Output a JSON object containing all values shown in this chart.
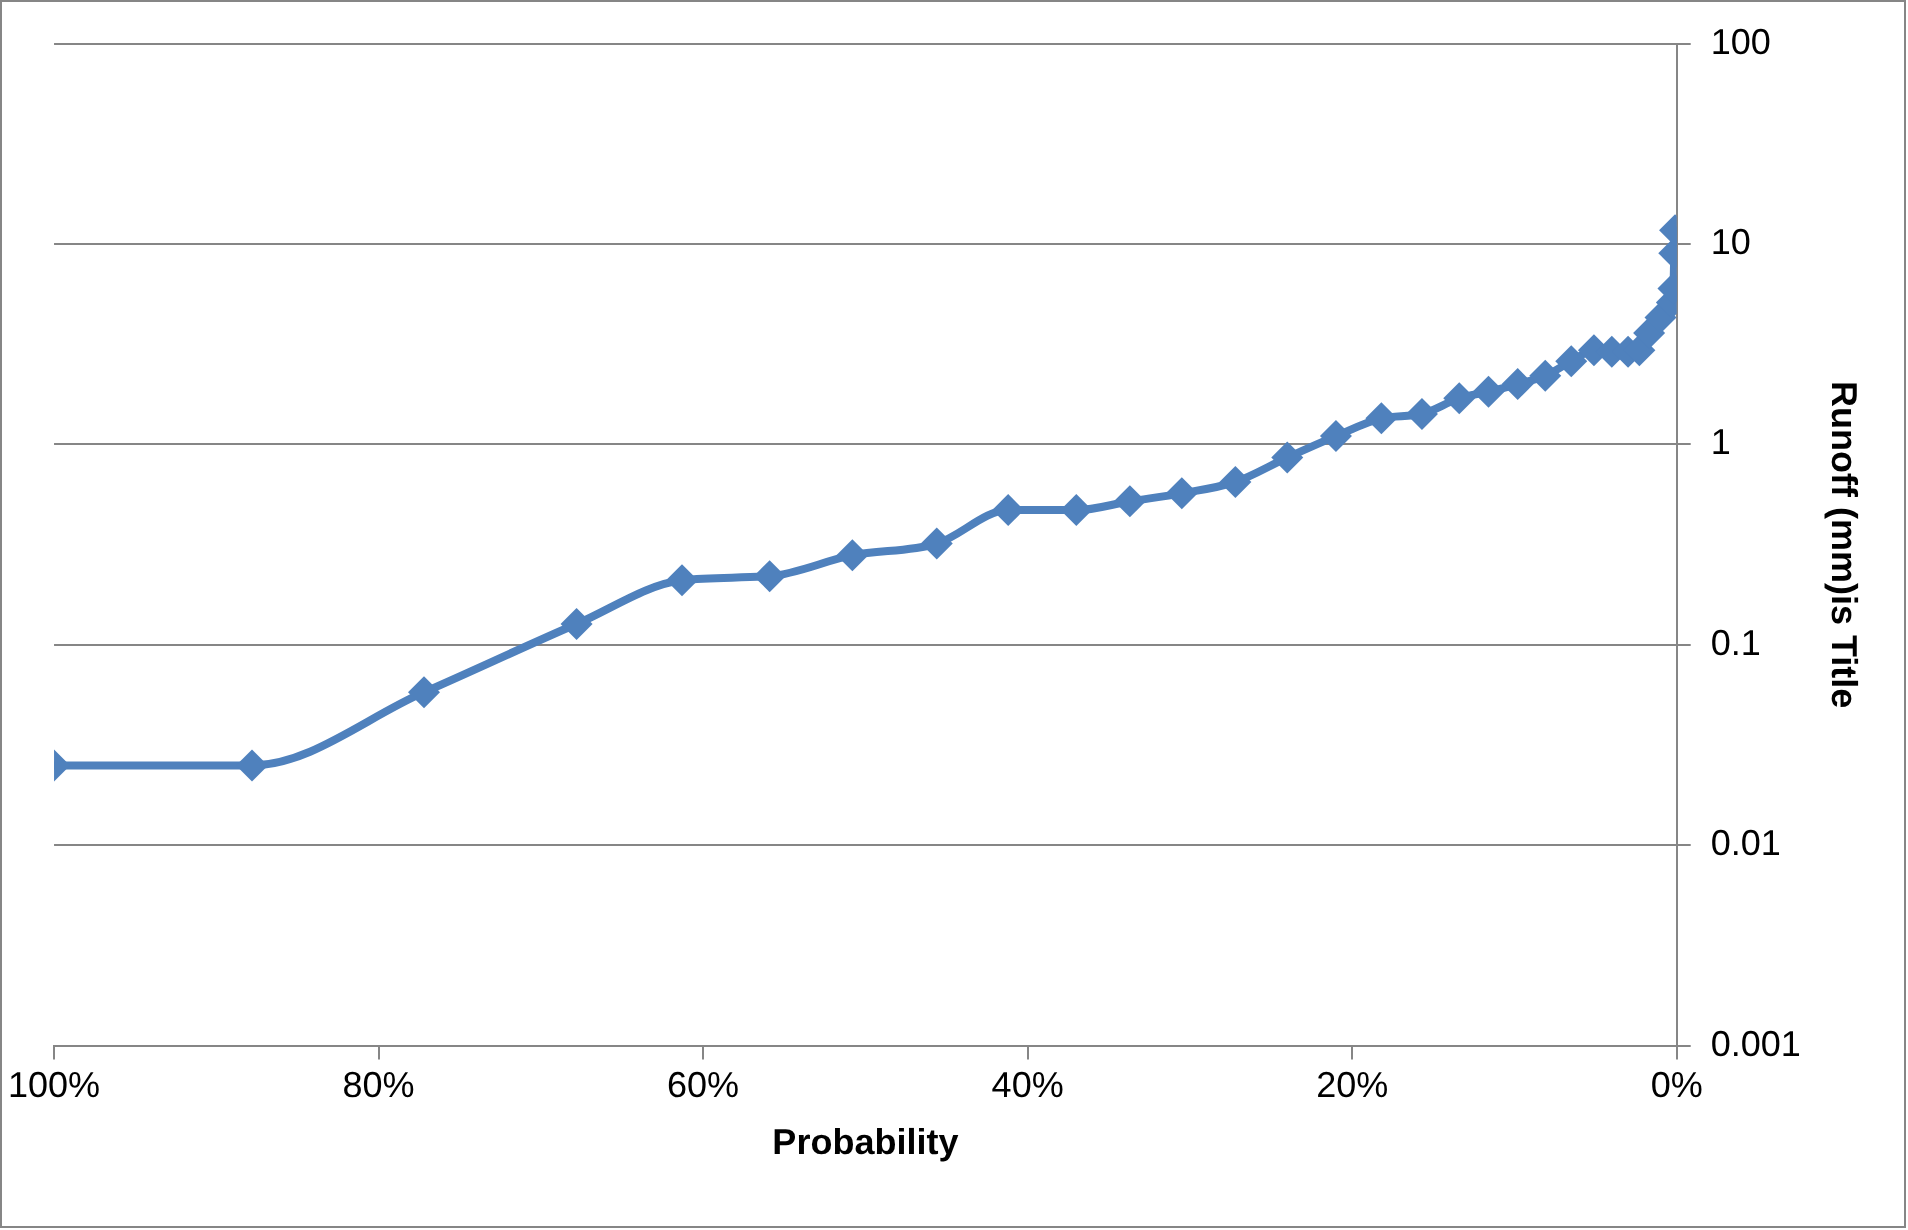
{
  "chart_data": {
    "type": "line",
    "xlabel": "Probability",
    "ylabel": "Runoff (mm)is Title",
    "log": "y",
    "grid": "y",
    "marker": "diamond",
    "line_style": "solid",
    "legend": false,
    "xlim": [
      100,
      0
    ],
    "xticks": [
      {
        "value": 100,
        "label": "100%"
      },
      {
        "value": 80,
        "label": "80%"
      },
      {
        "value": 60,
        "label": "60%"
      },
      {
        "value": 40,
        "label": "40%"
      },
      {
        "value": 20,
        "label": "20%"
      },
      {
        "value": 0,
        "label": "0%"
      }
    ],
    "ylim": [
      0.001,
      100
    ],
    "yticks": [
      0.001,
      0.01,
      0.1,
      1,
      10,
      100
    ],
    "series": [
      {
        "color": "#4f81bd",
        "x": [
          100,
          87.8,
          77.2,
          67.8,
          61.3,
          55.9,
          50.8,
          45.6,
          41.2,
          37,
          33.7,
          30.5,
          27.2,
          24,
          21,
          18.2,
          15.7,
          13.4,
          11.6,
          9.8,
          8.1,
          6.5,
          5.1,
          4,
          3,
          2.3,
          1.7,
          1,
          0.3,
          0.2,
          0.15,
          0.1
        ],
        "values": [
          0.025,
          0.025,
          0.058,
          0.127,
          0.21,
          0.22,
          0.28,
          0.32,
          0.47,
          0.47,
          0.52,
          0.57,
          0.65,
          0.86,
          1.1,
          1.35,
          1.42,
          1.7,
          1.83,
          2.0,
          2.2,
          2.6,
          2.95,
          2.9,
          2.9,
          2.95,
          3.6,
          4.3,
          5.1,
          6,
          9,
          11.7
        ]
      }
    ]
  }
}
